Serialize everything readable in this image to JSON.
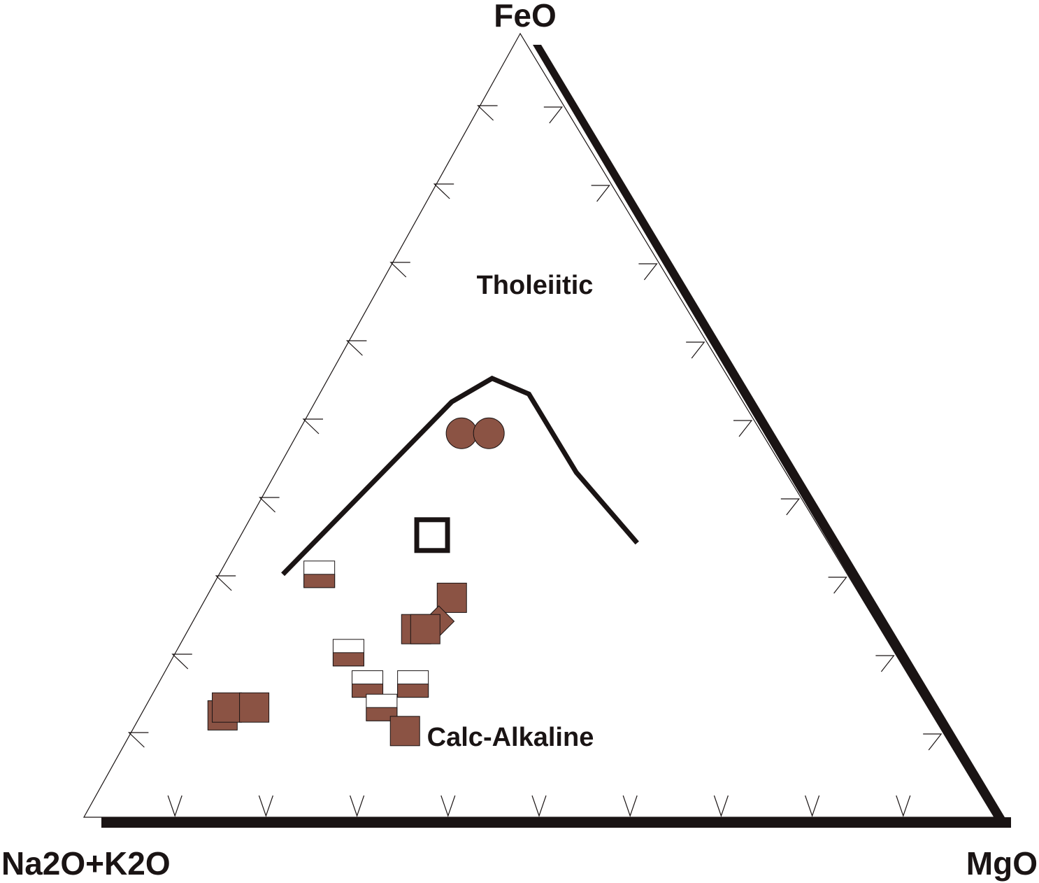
{
  "chart_data": {
    "type": "ternary",
    "vertices": {
      "top": "FeO",
      "left": "Na2O+K2O",
      "right": "MgO"
    },
    "fields": [
      "Tholeiitic",
      "Calc-Alkaline"
    ],
    "tick_fractions": [
      0.1,
      0.2,
      0.3,
      0.4,
      0.5,
      0.6,
      0.7,
      0.8,
      0.9
    ],
    "boundary": [
      {
        "FeO": 0.31,
        "alk": 0.62,
        "MgO": 0.07
      },
      {
        "FeO": 0.53,
        "alk": 0.32,
        "MgO": 0.15
      },
      {
        "FeO": 0.56,
        "alk": 0.26,
        "MgO": 0.18
      },
      {
        "FeO": 0.54,
        "alk": 0.23,
        "MgO": 0.23
      },
      {
        "FeO": 0.44,
        "alk": 0.23,
        "MgO": 0.33
      },
      {
        "FeO": 0.35,
        "alk": 0.21,
        "MgO": 0.44
      }
    ],
    "samples": [
      {
        "shape": "circle",
        "FeO": 0.49,
        "alk": 0.33,
        "MgO": 0.18,
        "color": "#8b5344"
      },
      {
        "shape": "circle",
        "FeO": 0.49,
        "alk": 0.3,
        "MgO": 0.21,
        "color": "#8b5344"
      },
      {
        "shape": "square-open",
        "FeO": 0.36,
        "alk": 0.43,
        "MgO": 0.21,
        "color": "#1a1414"
      },
      {
        "shape": "square-half",
        "FeO": 0.31,
        "alk": 0.58,
        "MgO": 0.11,
        "color": "#8b5344"
      },
      {
        "shape": "square-filled",
        "FeO": 0.28,
        "alk": 0.45,
        "MgO": 0.27,
        "color": "#8b5344"
      },
      {
        "shape": "diamond",
        "FeO": 0.25,
        "alk": 0.48,
        "MgO": 0.27,
        "color": "#8b5344"
      },
      {
        "shape": "square-filled",
        "FeO": 0.24,
        "alk": 0.51,
        "MgO": 0.25,
        "color": "#8b5344"
      },
      {
        "shape": "square-filled",
        "FeO": 0.24,
        "alk": 0.5,
        "MgO": 0.26,
        "color": "#8b5344"
      },
      {
        "shape": "square-half",
        "FeO": 0.21,
        "alk": 0.6,
        "MgO": 0.19,
        "color": "#8b5344"
      },
      {
        "shape": "square-half",
        "FeO": 0.17,
        "alk": 0.6,
        "MgO": 0.23,
        "color": "#8b5344"
      },
      {
        "shape": "square-half",
        "FeO": 0.17,
        "alk": 0.55,
        "MgO": 0.28,
        "color": "#8b5344"
      },
      {
        "shape": "square-half",
        "FeO": 0.14,
        "alk": 0.6,
        "MgO": 0.26,
        "color": "#8b5344"
      },
      {
        "shape": "square-filled",
        "FeO": 0.11,
        "alk": 0.59,
        "MgO": 0.3,
        "color": "#8b5344"
      },
      {
        "shape": "square-filled",
        "FeO": 0.13,
        "alk": 0.78,
        "MgO": 0.09,
        "color": "#8b5344"
      },
      {
        "shape": "square-filled",
        "FeO": 0.14,
        "alk": 0.77,
        "MgO": 0.09,
        "color": "#8b5344"
      },
      {
        "shape": "square-filled",
        "FeO": 0.14,
        "alk": 0.74,
        "MgO": 0.12,
        "color": "#8b5344"
      }
    ],
    "colors": {
      "sample_fill": "#8b5344",
      "line": "#1a1414"
    }
  }
}
